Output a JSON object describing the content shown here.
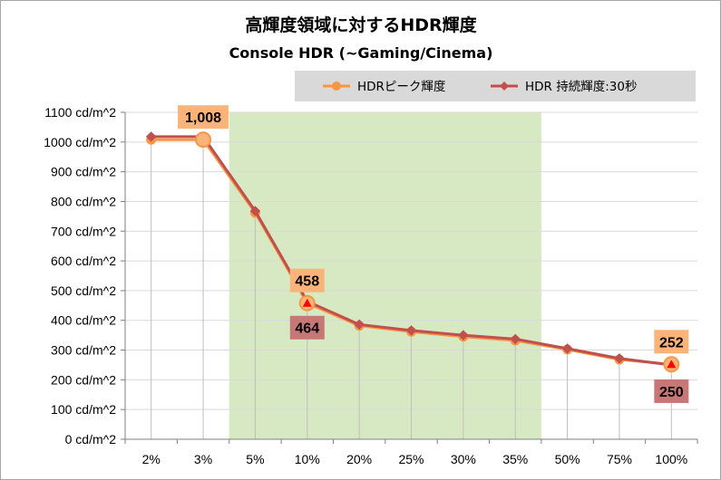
{
  "chart_data": {
    "type": "line",
    "title": "高輝度領域に対するHDR輝度",
    "subtitle": "Console HDR (~Gaming/Cinema)",
    "categories": [
      "2%",
      "3%",
      "5%",
      "10%",
      "20%",
      "25%",
      "30%",
      "35%",
      "50%",
      "75%",
      "100%"
    ],
    "y_tick_labels": [
      "0 cd/m^2",
      "100 cd/m^2",
      "200 cd/m^2",
      "300 cd/m^2",
      "400 cd/m^2",
      "500 cd/m^2",
      "600 cd/m^2",
      "700 cd/m^2",
      "800 cd/m^2",
      "900 cd/m^2",
      "1000 cd/m^2",
      "1100 cd/m^2"
    ],
    "ylim": [
      0,
      1100
    ],
    "y_step": 100,
    "grid": true,
    "legend_position": "top-right",
    "highlight_band": {
      "from": "5%",
      "to": "50%",
      "color": "#d7e9c3"
    },
    "series": [
      {
        "name": "HDRピーク輝度",
        "color": "#f79646",
        "marker": "circle",
        "values": [
          1008,
          1008,
          762,
          458,
          382,
          362,
          345,
          332,
          302,
          268,
          252
        ]
      },
      {
        "name": "HDR 持続輝度:30秒",
        "color": "#c0504d",
        "marker": "diamond",
        "values": [
          1018,
          1018,
          768,
          464,
          386,
          366,
          350,
          337,
          305,
          272,
          250
        ]
      }
    ],
    "data_labels": [
      {
        "series": 0,
        "category": "3%",
        "text": "1,008",
        "position": "above",
        "bg": "#fab47a"
      },
      {
        "series": 0,
        "category": "10%",
        "text": "458",
        "position": "above",
        "bg": "#fab47a"
      },
      {
        "series": 1,
        "category": "10%",
        "text": "464",
        "position": "below",
        "bg": "#c77876"
      },
      {
        "series": 0,
        "category": "100%",
        "text": "252",
        "position": "above",
        "bg": "#fab47a"
      },
      {
        "series": 1,
        "category": "100%",
        "text": "250",
        "position": "below",
        "bg": "#c77876"
      }
    ],
    "highlighted_points": [
      {
        "category": "3%",
        "marker": "big-circle"
      },
      {
        "category": "10%",
        "marker": "big-circle-triangle"
      },
      {
        "category": "100%",
        "marker": "big-circle-triangle"
      }
    ]
  }
}
